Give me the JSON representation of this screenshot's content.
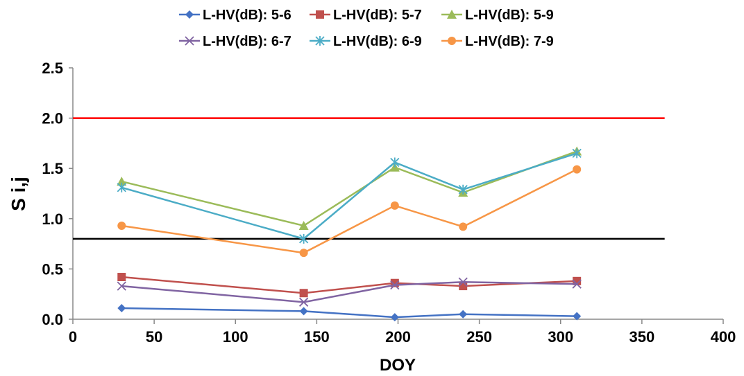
{
  "chart_data": {
    "type": "line",
    "title": "",
    "xlabel": "DOY",
    "ylabel": "S i,j",
    "xlim": [
      0,
      400
    ],
    "ylim": [
      0,
      2.5
    ],
    "x_ticks": [
      "0",
      "50",
      "100",
      "150",
      "200",
      "250",
      "300",
      "350",
      "400"
    ],
    "y_ticks": [
      "0.0",
      "0.5",
      "1.0",
      "1.5",
      "2.0",
      "2.5"
    ],
    "x_tick_values": [
      0,
      50,
      100,
      150,
      200,
      250,
      300,
      350,
      400
    ],
    "y_tick_values": [
      0,
      0.5,
      1.0,
      1.5,
      2.0,
      2.5
    ],
    "legend_position": "top",
    "grid": false,
    "x": [
      30,
      142,
      198,
      240,
      310
    ],
    "series": [
      {
        "name": "L-HV(dB): 5-6",
        "values": [
          0.11,
          0.08,
          0.02,
          0.05,
          0.03
        ],
        "color": "#4472C4",
        "marker": "diamond"
      },
      {
        "name": "L-HV(dB): 5-7",
        "values": [
          0.42,
          0.26,
          0.36,
          0.33,
          0.38
        ],
        "color": "#C0504D",
        "marker": "square"
      },
      {
        "name": "L-HV(dB): 5-9",
        "values": [
          1.37,
          0.93,
          1.51,
          1.26,
          1.67
        ],
        "color": "#9BBB59",
        "marker": "triangle"
      },
      {
        "name": "L-HV(dB): 6-7",
        "values": [
          0.33,
          0.17,
          0.34,
          0.37,
          0.35
        ],
        "color": "#8064A2",
        "marker": "x"
      },
      {
        "name": "L-HV(dB): 6-9",
        "values": [
          1.31,
          0.8,
          1.56,
          1.29,
          1.65
        ],
        "color": "#4BACC6",
        "marker": "star"
      },
      {
        "name": "L-HV(dB): 7-9",
        "values": [
          0.93,
          0.66,
          1.13,
          0.92,
          1.49
        ],
        "color": "#F79646",
        "marker": "circle"
      }
    ],
    "reference_lines": [
      {
        "y": 2.0,
        "x_range": [
          0,
          364
        ],
        "color": "#FF0000"
      },
      {
        "y": 0.8,
        "x_range": [
          0,
          364
        ],
        "color": "#000000"
      }
    ]
  }
}
